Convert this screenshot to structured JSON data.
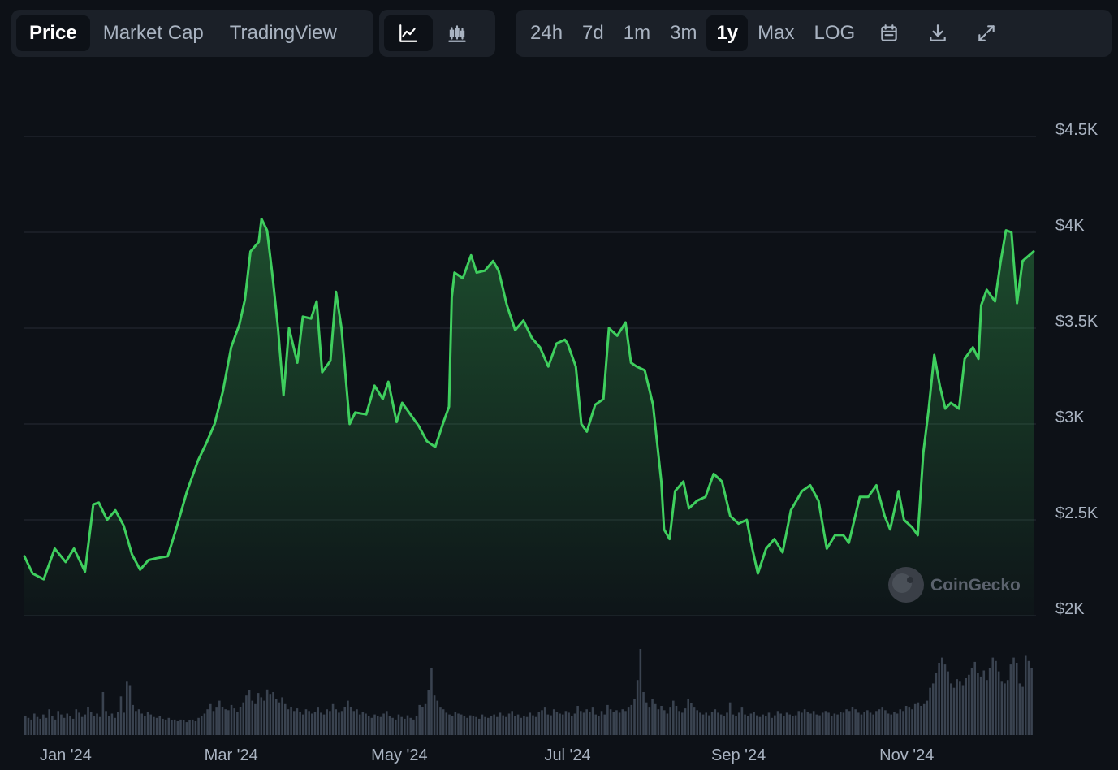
{
  "toolbar": {
    "view_tabs": [
      {
        "label": "Price",
        "active": true
      },
      {
        "label": "Market Cap",
        "active": false
      },
      {
        "label": "TradingView",
        "active": false
      }
    ],
    "chart_type_icons": [
      "line-chart-icon",
      "candlestick-chart-icon"
    ],
    "ranges": [
      {
        "label": "24h",
        "active": false
      },
      {
        "label": "7d",
        "active": false
      },
      {
        "label": "1m",
        "active": false
      },
      {
        "label": "3m",
        "active": false
      },
      {
        "label": "1y",
        "active": true
      },
      {
        "label": "Max",
        "active": false
      },
      {
        "label": "LOG",
        "active": false
      }
    ],
    "action_icons": [
      "calendar-icon",
      "download-icon",
      "fullscreen-icon"
    ]
  },
  "watermark": "CoinGecko",
  "colors": {
    "background": "#0d1117",
    "line": "#3fcf5e",
    "grid": "#262c35",
    "volume": "#3a4350",
    "panel": "#1b2028"
  },
  "chart_data": {
    "type": "area",
    "x_range": [
      "2023-12-17",
      "2024-12-17"
    ],
    "x_ticks": [
      {
        "label": "Jan '24",
        "date": "2024-01-01"
      },
      {
        "label": "Mar '24",
        "date": "2024-03-01"
      },
      {
        "label": "May '24",
        "date": "2024-05-01"
      },
      {
        "label": "Jul '24",
        "date": "2024-07-01"
      },
      {
        "label": "Sep '24",
        "date": "2024-09-01"
      },
      {
        "label": "Nov '24",
        "date": "2024-11-01"
      }
    ],
    "y_ticks": [
      {
        "label": "$2K",
        "value": 2000
      },
      {
        "label": "$2.5K",
        "value": 2500
      },
      {
        "label": "$3K",
        "value": 3000
      },
      {
        "label": "$3.5K",
        "value": 3500
      },
      {
        "label": "$4K",
        "value": 4000
      },
      {
        "label": "$4.5K",
        "value": 4500
      }
    ],
    "ylim": [
      2000,
      4500
    ],
    "grid": true,
    "series": [
      {
        "points": [
          [
            "2023-12-17",
            2310
          ],
          [
            "2023-12-20",
            2220
          ],
          [
            "2023-12-24",
            2190
          ],
          [
            "2023-12-28",
            2350
          ],
          [
            "2024-01-01",
            2280
          ],
          [
            "2024-01-04",
            2350
          ],
          [
            "2024-01-08",
            2230
          ],
          [
            "2024-01-11",
            2580
          ],
          [
            "2024-01-13",
            2590
          ],
          [
            "2024-01-16",
            2500
          ],
          [
            "2024-01-19",
            2550
          ],
          [
            "2024-01-22",
            2470
          ],
          [
            "2024-01-25",
            2320
          ],
          [
            "2024-01-28",
            2240
          ],
          [
            "2024-01-31",
            2290
          ],
          [
            "2024-02-03",
            2300
          ],
          [
            "2024-02-07",
            2310
          ],
          [
            "2024-02-10",
            2450
          ],
          [
            "2024-02-14",
            2650
          ],
          [
            "2024-02-18",
            2810
          ],
          [
            "2024-02-21",
            2900
          ],
          [
            "2024-02-24",
            3000
          ],
          [
            "2024-02-27",
            3170
          ],
          [
            "2024-03-01",
            3400
          ],
          [
            "2024-03-04",
            3520
          ],
          [
            "2024-03-06",
            3650
          ],
          [
            "2024-03-08",
            3900
          ],
          [
            "2024-03-11",
            3950
          ],
          [
            "2024-03-12",
            4070
          ],
          [
            "2024-03-14",
            4010
          ],
          [
            "2024-03-16",
            3770
          ],
          [
            "2024-03-18",
            3500
          ],
          [
            "2024-03-20",
            3150
          ],
          [
            "2024-03-22",
            3500
          ],
          [
            "2024-03-25",
            3320
          ],
          [
            "2024-03-27",
            3560
          ],
          [
            "2024-03-30",
            3550
          ],
          [
            "2024-04-01",
            3640
          ],
          [
            "2024-04-03",
            3270
          ],
          [
            "2024-04-06",
            3330
          ],
          [
            "2024-04-08",
            3690
          ],
          [
            "2024-04-10",
            3500
          ],
          [
            "2024-04-13",
            3000
          ],
          [
            "2024-04-15",
            3060
          ],
          [
            "2024-04-19",
            3050
          ],
          [
            "2024-04-22",
            3200
          ],
          [
            "2024-04-25",
            3130
          ],
          [
            "2024-04-27",
            3220
          ],
          [
            "2024-04-30",
            3010
          ],
          [
            "2024-05-02",
            3110
          ],
          [
            "2024-05-05",
            3050
          ],
          [
            "2024-05-08",
            2990
          ],
          [
            "2024-05-11",
            2910
          ],
          [
            "2024-05-14",
            2880
          ],
          [
            "2024-05-17",
            3010
          ],
          [
            "2024-05-19",
            3090
          ],
          [
            "2024-05-20",
            3660
          ],
          [
            "2024-05-21",
            3790
          ],
          [
            "2024-05-24",
            3760
          ],
          [
            "2024-05-27",
            3880
          ],
          [
            "2024-05-29",
            3790
          ],
          [
            "2024-06-01",
            3800
          ],
          [
            "2024-06-04",
            3850
          ],
          [
            "2024-06-06",
            3800
          ],
          [
            "2024-06-09",
            3620
          ],
          [
            "2024-06-12",
            3490
          ],
          [
            "2024-06-15",
            3540
          ],
          [
            "2024-06-18",
            3450
          ],
          [
            "2024-06-21",
            3400
          ],
          [
            "2024-06-24",
            3300
          ],
          [
            "2024-06-27",
            3420
          ],
          [
            "2024-06-30",
            3440
          ],
          [
            "2024-07-01",
            3420
          ],
          [
            "2024-07-04",
            3300
          ],
          [
            "2024-07-06",
            3000
          ],
          [
            "2024-07-08",
            2960
          ],
          [
            "2024-07-11",
            3100
          ],
          [
            "2024-07-14",
            3130
          ],
          [
            "2024-07-16",
            3500
          ],
          [
            "2024-07-19",
            3460
          ],
          [
            "2024-07-22",
            3530
          ],
          [
            "2024-07-24",
            3320
          ],
          [
            "2024-07-26",
            3300
          ],
          [
            "2024-07-29",
            3280
          ],
          [
            "2024-08-01",
            3100
          ],
          [
            "2024-08-04",
            2700
          ],
          [
            "2024-08-05",
            2450
          ],
          [
            "2024-08-07",
            2400
          ],
          [
            "2024-08-09",
            2650
          ],
          [
            "2024-08-12",
            2700
          ],
          [
            "2024-08-14",
            2560
          ],
          [
            "2024-08-17",
            2600
          ],
          [
            "2024-08-20",
            2620
          ],
          [
            "2024-08-23",
            2740
          ],
          [
            "2024-08-26",
            2700
          ],
          [
            "2024-08-29",
            2520
          ],
          [
            "2024-09-01",
            2480
          ],
          [
            "2024-09-04",
            2500
          ],
          [
            "2024-09-06",
            2350
          ],
          [
            "2024-09-08",
            2220
          ],
          [
            "2024-09-11",
            2350
          ],
          [
            "2024-09-14",
            2400
          ],
          [
            "2024-09-17",
            2330
          ],
          [
            "2024-09-20",
            2550
          ],
          [
            "2024-09-24",
            2650
          ],
          [
            "2024-09-27",
            2680
          ],
          [
            "2024-09-30",
            2600
          ],
          [
            "2024-10-03",
            2350
          ],
          [
            "2024-10-06",
            2420
          ],
          [
            "2024-10-09",
            2420
          ],
          [
            "2024-10-11",
            2380
          ],
          [
            "2024-10-15",
            2620
          ],
          [
            "2024-10-18",
            2620
          ],
          [
            "2024-10-21",
            2680
          ],
          [
            "2024-10-24",
            2520
          ],
          [
            "2024-10-26",
            2450
          ],
          [
            "2024-10-29",
            2650
          ],
          [
            "2024-10-31",
            2500
          ],
          [
            "2024-11-03",
            2460
          ],
          [
            "2024-11-05",
            2420
          ],
          [
            "2024-11-07",
            2850
          ],
          [
            "2024-11-09",
            3080
          ],
          [
            "2024-11-11",
            3360
          ],
          [
            "2024-11-13",
            3200
          ],
          [
            "2024-11-15",
            3080
          ],
          [
            "2024-11-17",
            3110
          ],
          [
            "2024-11-20",
            3080
          ],
          [
            "2024-11-22",
            3340
          ],
          [
            "2024-11-25",
            3400
          ],
          [
            "2024-11-27",
            3340
          ],
          [
            "2024-11-28",
            3620
          ],
          [
            "2024-11-30",
            3700
          ],
          [
            "2024-12-03",
            3640
          ],
          [
            "2024-12-05",
            3840
          ],
          [
            "2024-12-07",
            4010
          ],
          [
            "2024-12-09",
            4000
          ],
          [
            "2024-12-11",
            3630
          ],
          [
            "2024-12-13",
            3850
          ],
          [
            "2024-12-17",
            3900
          ]
        ]
      }
    ],
    "volume": {
      "relative_heights": [
        0.22,
        0.2,
        0.18,
        0.25,
        0.21,
        0.19,
        0.24,
        0.2,
        0.3,
        0.22,
        0.18,
        0.28,
        0.24,
        0.2,
        0.25,
        0.22,
        0.19,
        0.3,
        0.26,
        0.21,
        0.24,
        0.33,
        0.27,
        0.22,
        0.25,
        0.21,
        0.5,
        0.28,
        0.22,
        0.25,
        0.2,
        0.27,
        0.45,
        0.26,
        0.62,
        0.58,
        0.35,
        0.28,
        0.3,
        0.25,
        0.22,
        0.27,
        0.24,
        0.21,
        0.2,
        0.22,
        0.19,
        0.18,
        0.2,
        0.17,
        0.18,
        0.16,
        0.18,
        0.17,
        0.15,
        0.17,
        0.18,
        0.16,
        0.2,
        0.22,
        0.25,
        0.3,
        0.36,
        0.28,
        0.32,
        0.4,
        0.33,
        0.3,
        0.29,
        0.35,
        0.31,
        0.27,
        0.33,
        0.38,
        0.46,
        0.52,
        0.4,
        0.36,
        0.49,
        0.44,
        0.4,
        0.53,
        0.47,
        0.5,
        0.42,
        0.38,
        0.44,
        0.36,
        0.3,
        0.33,
        0.28,
        0.31,
        0.27,
        0.24,
        0.3,
        0.28,
        0.25,
        0.27,
        0.32,
        0.26,
        0.24,
        0.3,
        0.28,
        0.36,
        0.3,
        0.26,
        0.28,
        0.33,
        0.4,
        0.33,
        0.28,
        0.3,
        0.24,
        0.27,
        0.25,
        0.22,
        0.2,
        0.24,
        0.22,
        0.21,
        0.25,
        0.28,
        0.22,
        0.2,
        0.18,
        0.24,
        0.21,
        0.19,
        0.23,
        0.2,
        0.18,
        0.22,
        0.35,
        0.33,
        0.36,
        0.52,
        0.78,
        0.46,
        0.4,
        0.32,
        0.3,
        0.26,
        0.24,
        0.22,
        0.27,
        0.25,
        0.24,
        0.22,
        0.2,
        0.23,
        0.22,
        0.21,
        0.19,
        0.24,
        0.21,
        0.2,
        0.22,
        0.24,
        0.21,
        0.26,
        0.23,
        0.21,
        0.25,
        0.28,
        0.22,
        0.24,
        0.2,
        0.22,
        0.21,
        0.26,
        0.23,
        0.21,
        0.27,
        0.29,
        0.32,
        0.24,
        0.23,
        0.3,
        0.27,
        0.25,
        0.24,
        0.28,
        0.26,
        0.22,
        0.25,
        0.34,
        0.28,
        0.26,
        0.3,
        0.27,
        0.32,
        0.24,
        0.22,
        0.28,
        0.24,
        0.35,
        0.3,
        0.27,
        0.29,
        0.26,
        0.3,
        0.28,
        0.32,
        0.35,
        0.42,
        0.64,
        1.0,
        0.5,
        0.38,
        0.32,
        0.42,
        0.36,
        0.3,
        0.34,
        0.29,
        0.25,
        0.32,
        0.4,
        0.34,
        0.28,
        0.26,
        0.31,
        0.42,
        0.37,
        0.32,
        0.29,
        0.26,
        0.24,
        0.26,
        0.23,
        0.27,
        0.3,
        0.26,
        0.24,
        0.22,
        0.26,
        0.38,
        0.24,
        0.22,
        0.26,
        0.32,
        0.24,
        0.22,
        0.25,
        0.27,
        0.23,
        0.21,
        0.24,
        0.22,
        0.26,
        0.2,
        0.23,
        0.28,
        0.25,
        0.22,
        0.26,
        0.24,
        0.22,
        0.23,
        0.28,
        0.26,
        0.3,
        0.27,
        0.25,
        0.28,
        0.24,
        0.23,
        0.26,
        0.28,
        0.26,
        0.22,
        0.25,
        0.24,
        0.27,
        0.26,
        0.3,
        0.28,
        0.33,
        0.3,
        0.26,
        0.24,
        0.27,
        0.29,
        0.26,
        0.24,
        0.28,
        0.3,
        0.32,
        0.29,
        0.25,
        0.24,
        0.27,
        0.25,
        0.3,
        0.28,
        0.34,
        0.32,
        0.3,
        0.36,
        0.38,
        0.34,
        0.36,
        0.4,
        0.55,
        0.6,
        0.72,
        0.84,
        0.9,
        0.82,
        0.74,
        0.6,
        0.55,
        0.65,
        0.62,
        0.58,
        0.66,
        0.7,
        0.78,
        0.85,
        0.72,
        0.68,
        0.75,
        0.64,
        0.78,
        0.9,
        0.86,
        0.74,
        0.62,
        0.6,
        0.64,
        0.82,
        0.9,
        0.84,
        0.6,
        0.56,
        0.92,
        0.86,
        0.78
      ]
    }
  }
}
